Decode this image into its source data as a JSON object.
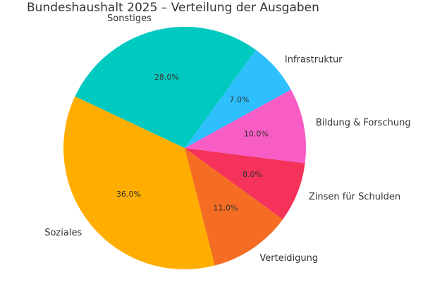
{
  "chart_data": {
    "type": "pie",
    "title": "Bundeshaushalt 2025 – Verteilung der Ausgaben",
    "slices": [
      {
        "label": "Sonstiges",
        "value": 28.0,
        "display": "28.0%",
        "color": "#00C9C0"
      },
      {
        "label": "Soziales",
        "value": 36.0,
        "display": "36.0%",
        "color": "#FFAE00"
      },
      {
        "label": "Verteidigung",
        "value": 11.0,
        "display": "11.0%",
        "color": "#F46D22"
      },
      {
        "label": "Zinsen für Schulden",
        "value": 8.0,
        "display": "8.0%",
        "color": "#F5325A"
      },
      {
        "label": "Bildung & Forschung",
        "value": 10.0,
        "display": "10.0%",
        "color": "#F85CC5"
      },
      {
        "label": "Infrastruktur",
        "value": 7.0,
        "display": "7.0%",
        "color": "#2EBFFF"
      }
    ],
    "start_angle_deg": 54,
    "direction": "counterclockwise",
    "grid": false,
    "legend": "none"
  }
}
